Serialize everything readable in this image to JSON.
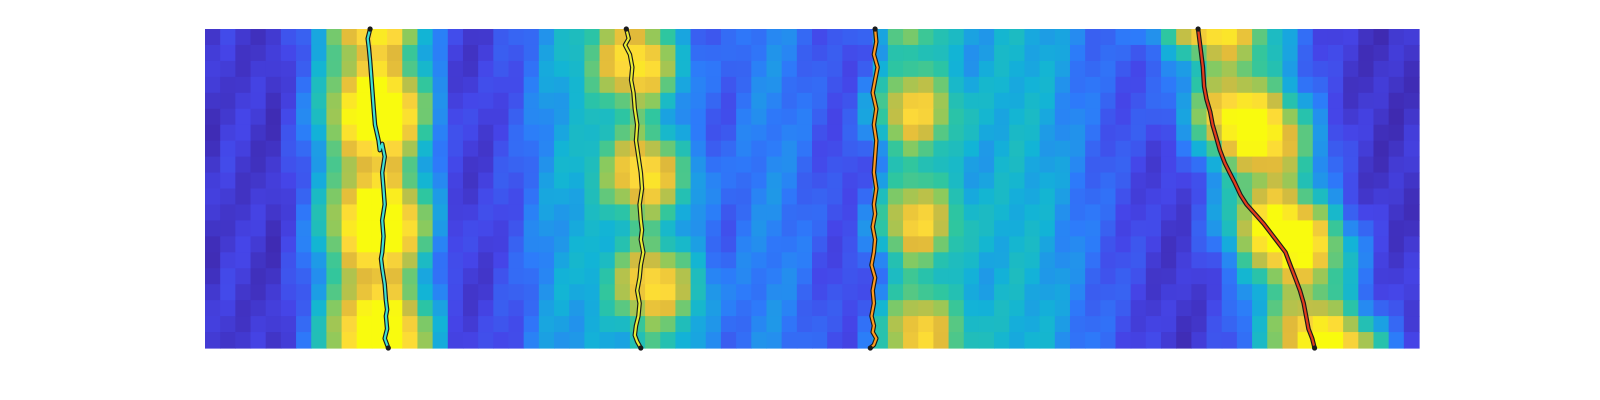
{
  "chart_data": {
    "type": "heatmap",
    "title": "",
    "xlabel": "",
    "ylabel": "",
    "axes_visible": false,
    "colormap": "parula",
    "colormap_stops": [
      "#3e26a8",
      "#4545e8",
      "#2d7bfa",
      "#12b4d6",
      "#2ec6a0",
      "#8dca5c",
      "#e0b93a",
      "#fcd83a",
      "#f9fb0e"
    ],
    "heatmap": {
      "n_cols": 80,
      "n_rows": 20,
      "column_profile": [
        0.12,
        0.18,
        0.16,
        0.14,
        0.1,
        0.2,
        0.3,
        0.44,
        0.56,
        0.62,
        0.66,
        0.62,
        0.52,
        0.4,
        0.3,
        0.22,
        0.1,
        0.14,
        0.18,
        0.26,
        0.32,
        0.44,
        0.55,
        0.6,
        0.58,
        0.52,
        0.42,
        0.3,
        0.22,
        0.16,
        0.1,
        0.14,
        0.2,
        0.26,
        0.3,
        0.42,
        0.48,
        0.5,
        0.46,
        0.4,
        0.3,
        0.22,
        0.14,
        0.1,
        0.12,
        0.18,
        0.22,
        0.26,
        0.3,
        0.38,
        0.48,
        0.58,
        0.66,
        0.7,
        0.68,
        0.64,
        0.56,
        0.48,
        0.4,
        0.34,
        0.28,
        0.24,
        0.18,
        0.14,
        0.12,
        0.16,
        0.2,
        0.24,
        0.3,
        0.34,
        0.36,
        0.34,
        0.3,
        0.24,
        0.18,
        0.14,
        0.12,
        0.1,
        0.1,
        0.12
      ],
      "ridges": [
        {
          "center_col": 11,
          "amplitude": 0.95,
          "width": 3.2,
          "drift_cols": 0.2
        },
        {
          "center_col": 28,
          "amplitude": 0.85,
          "width": 3.0,
          "drift_cols": 1.5
        },
        {
          "center_col": 46,
          "amplitude": 0.75,
          "width": 3.0,
          "drift_cols": 0.5
        },
        {
          "center_col": 66,
          "amplitude": 1.0,
          "width": 3.6,
          "drift_cols": 7.5
        }
      ]
    },
    "x": [
      0,
      1
    ],
    "series": [
      {
        "color": "#3ee0d2",
        "x": [
          0.136,
          0.134,
          0.135,
          0.136,
          0.137,
          0.138,
          0.139,
          0.14,
          0.143,
          0.144,
          0.146,
          0.148,
          0.146,
          0.147,
          0.148,
          0.146,
          0.147,
          0.146,
          0.145,
          0.146,
          0.148,
          0.149,
          0.15,
          0.149,
          0.15,
          0.148,
          0.151
        ],
        "y": [
          0.0,
          0.03,
          0.06,
          0.1,
          0.15,
          0.2,
          0.25,
          0.3,
          0.35,
          0.38,
          0.36,
          0.4,
          0.45,
          0.5,
          0.55,
          0.6,
          0.65,
          0.7,
          0.72,
          0.75,
          0.8,
          0.85,
          0.88,
          0.9,
          0.94,
          0.97,
          1.0
        ]
      },
      {
        "color": "#e8ec34",
        "x": [
          0.347,
          0.349,
          0.346,
          0.35,
          0.352,
          0.351,
          0.353,
          0.354,
          0.356,
          0.355,
          0.357,
          0.359,
          0.36,
          0.358,
          0.359,
          0.36,
          0.359,
          0.361,
          0.359,
          0.358,
          0.356,
          0.358,
          0.357,
          0.355,
          0.354,
          0.356,
          0.359
        ],
        "y": [
          0.0,
          0.03,
          0.05,
          0.08,
          0.12,
          0.16,
          0.2,
          0.25,
          0.3,
          0.35,
          0.4,
          0.45,
          0.5,
          0.55,
          0.6,
          0.63,
          0.66,
          0.7,
          0.74,
          0.78,
          0.82,
          0.86,
          0.9,
          0.93,
          0.96,
          0.98,
          1.0
        ]
      },
      {
        "color": "#ff9a1e",
        "x": [
          0.552,
          0.553,
          0.551,
          0.554,
          0.552,
          0.55,
          0.553,
          0.551,
          0.553,
          0.552,
          0.551,
          0.553,
          0.551,
          0.552,
          0.55,
          0.552,
          0.551,
          0.549,
          0.552,
          0.55,
          0.551,
          0.549,
          0.551,
          0.55,
          0.553,
          0.551,
          0.548
        ],
        "y": [
          0.0,
          0.04,
          0.08,
          0.12,
          0.16,
          0.2,
          0.25,
          0.3,
          0.35,
          0.4,
          0.45,
          0.5,
          0.55,
          0.58,
          0.62,
          0.66,
          0.7,
          0.74,
          0.78,
          0.82,
          0.86,
          0.9,
          0.93,
          0.95,
          0.97,
          0.99,
          1.0
        ]
      },
      {
        "color": "#e23b1c",
        "x": [
          0.818,
          0.82,
          0.822,
          0.823,
          0.825,
          0.828,
          0.83,
          0.833,
          0.836,
          0.84,
          0.844,
          0.848,
          0.853,
          0.858,
          0.865,
          0.872,
          0.878,
          0.884,
          0.89,
          0.894,
          0.898,
          0.902,
          0.905,
          0.907,
          0.909,
          0.912,
          0.914
        ],
        "y": [
          0.0,
          0.06,
          0.12,
          0.18,
          0.22,
          0.26,
          0.3,
          0.34,
          0.38,
          0.42,
          0.45,
          0.48,
          0.52,
          0.55,
          0.58,
          0.61,
          0.64,
          0.67,
          0.7,
          0.74,
          0.78,
          0.82,
          0.86,
          0.9,
          0.94,
          0.97,
          1.0
        ]
      }
    ]
  }
}
